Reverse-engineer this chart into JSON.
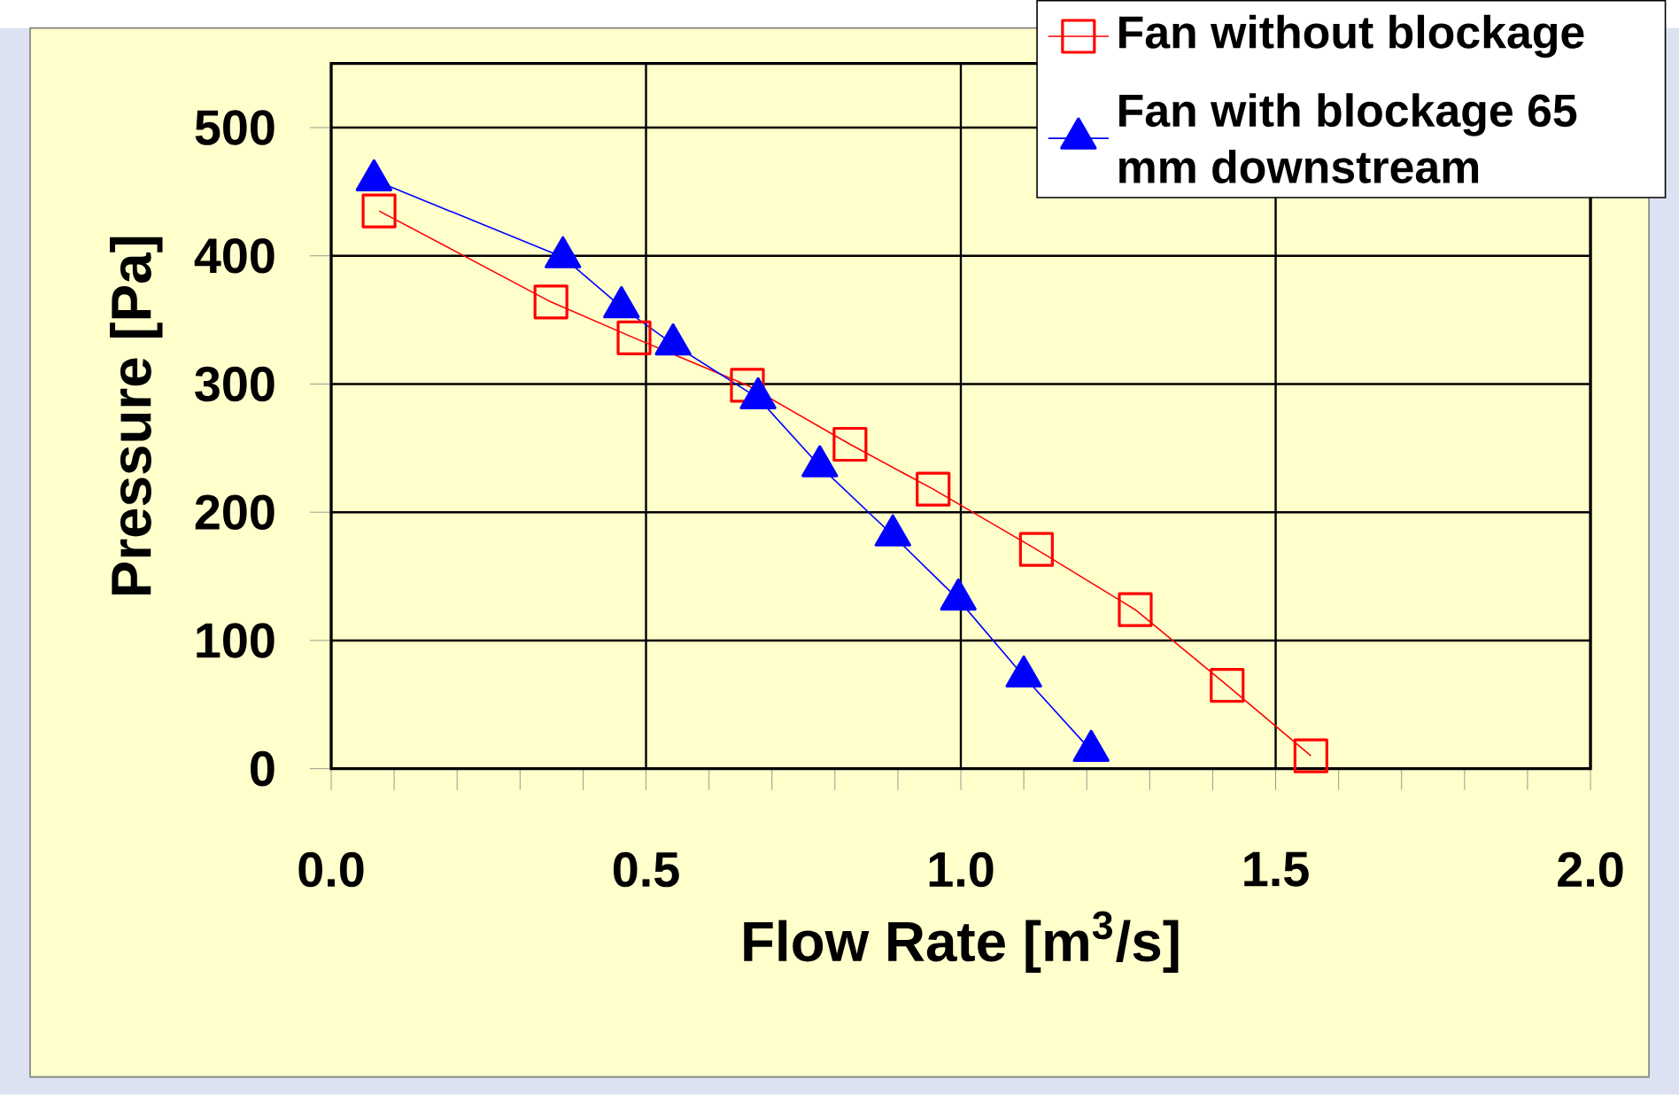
{
  "chart_data": {
    "type": "line",
    "xlabel": "Flow Rate [m$^{3}$/s]",
    "ylabel": "Pressure [Pa]",
    "xlim": [
      0,
      2
    ],
    "ylim": [
      0,
      550
    ],
    "xticks": [
      {
        "value": 0,
        "label": "0.0"
      },
      0.5,
      {
        "value": 1,
        "label": "1.0"
      },
      1.5,
      {
        "value": 2,
        "label": "2.0"
      }
    ],
    "yticks": [
      0,
      100,
      200,
      300,
      400,
      500
    ],
    "grid": true,
    "legend": "top right",
    "series": [
      {
        "name": "Fan without blockage",
        "color": "#ff0000",
        "marker": "square",
        "x": [
          0.076,
          0.349,
          0.481,
          0.661,
          0.824,
          0.956,
          1.12,
          1.277,
          1.423,
          1.556
        ],
        "values": [
          435,
          364,
          336,
          299,
          253,
          218,
          171,
          124,
          65,
          10
        ]
      },
      {
        "name": "Fan with blockage 65 mm downstream",
        "color": "#0000ff",
        "marker": "triangle",
        "x": [
          0.068,
          0.368,
          0.461,
          0.543,
          0.678,
          0.776,
          0.892,
          0.996,
          1.1,
          1.207
        ],
        "values": [
          459,
          399,
          360,
          331,
          289,
          236,
          182,
          132,
          72,
          14
        ]
      }
    ]
  }
}
